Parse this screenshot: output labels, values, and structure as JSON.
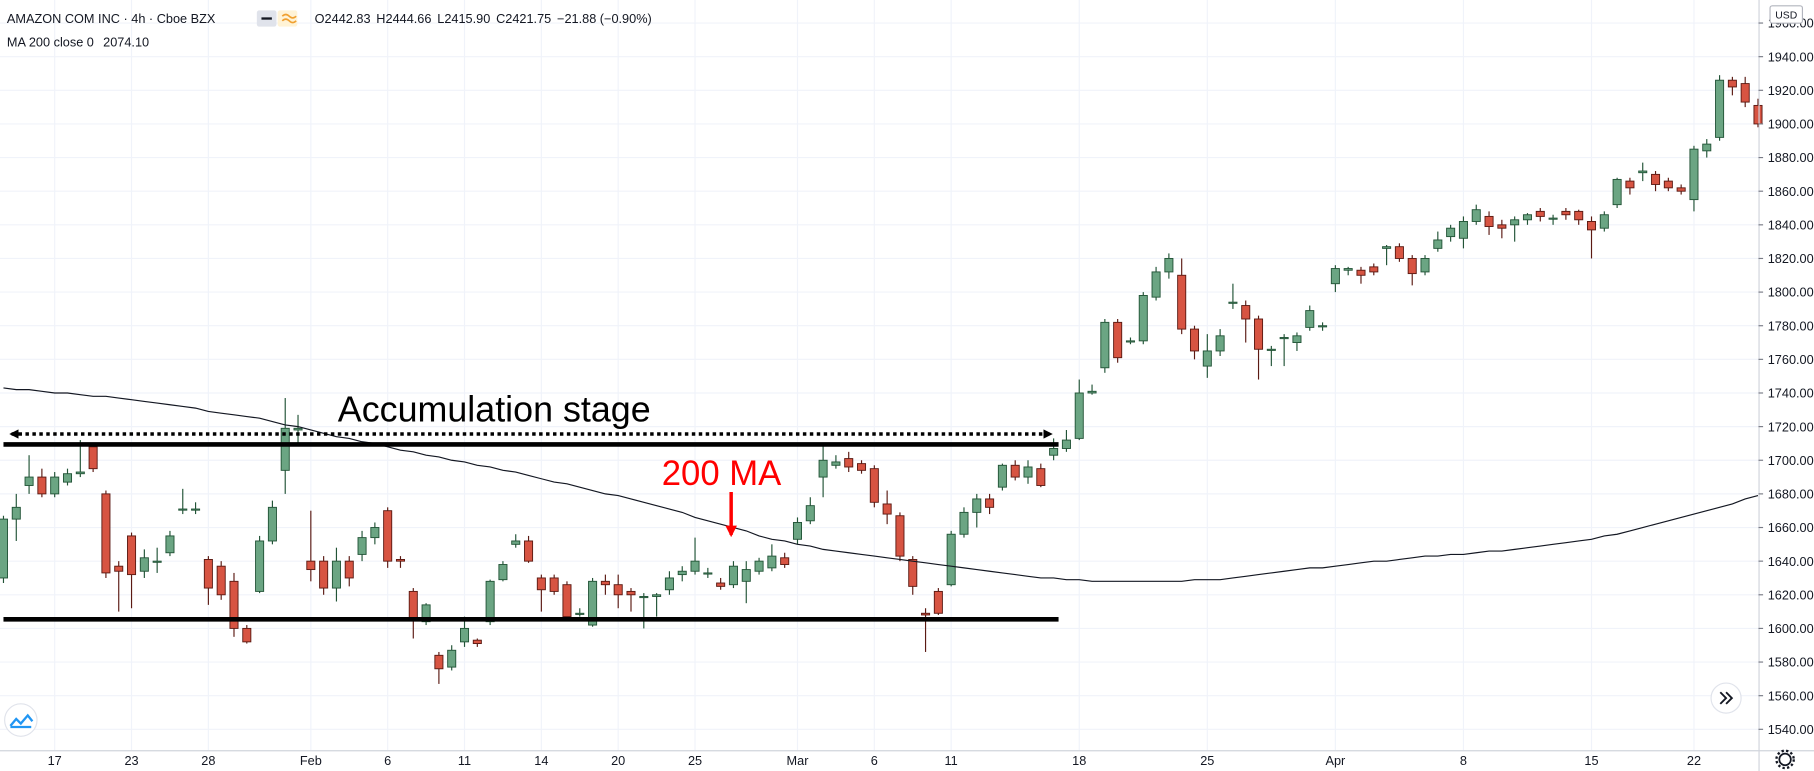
{
  "chart_data": {
    "type": "candlestick",
    "symbol": "AMAZON COM INC · 4h · Cboe BZX",
    "ohlc_legend": [
      "O2442.83",
      "H2444.66",
      "L2415.90",
      "C2421.75",
      "−21.88 (−0.90%)"
    ],
    "ma_legend": [
      "MA 200 close 0",
      "2074.10"
    ],
    "currency": "USD",
    "annotation": "Accumulation stage",
    "ma_annotation": "200 MA",
    "hlines": [
      1709.4,
      1605.4
    ],
    "arrow_level": 1715.6,
    "up_color": "#6ba583",
    "down_color": "#d75442",
    "ma_color": "#131722",
    "grid": true,
    "ylim": [
      1527.6,
      1973.7
    ],
    "yticks": [
      {
        "value": 1540,
        "label": "1540.00"
      },
      {
        "value": 1560,
        "label": "1560.00"
      },
      {
        "value": 1580,
        "label": "1580.00"
      },
      {
        "value": 1600,
        "label": "1600.00"
      },
      {
        "value": 1620,
        "label": "1620.00"
      },
      {
        "value": 1640,
        "label": "1640.00"
      },
      {
        "value": 1660,
        "label": "1660.00"
      },
      {
        "value": 1680,
        "label": "1680.00"
      },
      {
        "value": 1700,
        "label": "1700.00"
      },
      {
        "value": 1720,
        "label": "1720.00"
      },
      {
        "value": 1740,
        "label": "1740.00"
      },
      {
        "value": 1760,
        "label": "1760.00"
      },
      {
        "value": 1780,
        "label": "1780.00"
      },
      {
        "value": 1800,
        "label": "1800.00"
      },
      {
        "value": 1820,
        "label": "1820.00"
      },
      {
        "value": 1840,
        "label": "1840.00"
      },
      {
        "value": 1860,
        "label": "1860.00"
      },
      {
        "value": 1880,
        "label": "1880.00"
      },
      {
        "value": 1900,
        "label": "1900.00"
      },
      {
        "value": 1920,
        "label": "1920.00"
      },
      {
        "value": 1940,
        "label": "1940.00"
      },
      {
        "value": 1960,
        "label": "1960.00"
      }
    ],
    "categories": [
      null,
      null,
      null,
      null,
      "17",
      null,
      null,
      null,
      null,
      null,
      "23",
      null,
      null,
      null,
      null,
      null,
      "28",
      null,
      null,
      null,
      null,
      null,
      null,
      null,
      "Feb",
      null,
      null,
      null,
      null,
      null,
      "6",
      null,
      null,
      null,
      null,
      null,
      "11",
      null,
      null,
      null,
      null,
      null,
      "14",
      null,
      null,
      null,
      null,
      null,
      "20",
      null,
      null,
      null,
      null,
      null,
      "25",
      null,
      null,
      null,
      null,
      null,
      null,
      null,
      "Mar",
      null,
      null,
      null,
      null,
      null,
      "6",
      null,
      null,
      null,
      null,
      null,
      "11",
      null,
      null,
      null,
      null,
      null,
      null,
      null,
      null,
      null,
      "18",
      null,
      null,
      null,
      null,
      null,
      null,
      null,
      null,
      null,
      "25",
      null,
      null,
      null,
      null,
      null,
      null,
      null,
      null,
      null,
      "Apr",
      null,
      null,
      null,
      null,
      null,
      null,
      null,
      null,
      null,
      "8",
      null,
      null,
      null,
      null,
      null,
      null,
      null,
      null,
      null,
      "15",
      null,
      null,
      null,
      null,
      null,
      null,
      null,
      "22",
      null,
      null,
      null,
      null,
      null
    ],
    "open": [
      1630,
      1665,
      1685,
      1690,
      1680,
      1687,
      1692,
      1708,
      1680,
      1637,
      1655,
      1634,
      1640,
      1645,
      1671,
      1671,
      1641,
      1637,
      1628,
      1600,
      1622,
      1652,
      1694,
      1718,
      1640,
      1640,
      1624,
      1640,
      1644,
      1654,
      1670,
      1641,
      1622,
      1604,
      1584,
      1577,
      1592,
      1593,
      1604,
      1629,
      1650,
      1652,
      1630,
      1630,
      1626,
      1609,
      1602,
      1628,
      1626,
      1622,
      1619,
      1619,
      1623,
      1632,
      1634,
      1633,
      1627,
      1626,
      1628,
      1634,
      1636,
      1642,
      1653,
      1664,
      1690,
      1697,
      1701,
      1698,
      1695,
      1674,
      1667,
      1641,
      1609,
      1622,
      1626,
      1656,
      1669,
      1677,
      1684,
      1697,
      1690,
      1695,
      1703,
      1707,
      1713,
      1740,
      1755,
      1782,
      1771,
      1771,
      1797,
      1812,
      1810,
      1778,
      1756,
      1765,
      1794,
      1792,
      1784,
      1766,
      1773,
      1770,
      1779,
      1780,
      1805,
      1813,
      1813,
      1815,
      1826,
      1827,
      1820,
      1812,
      1826,
      1833,
      1832,
      1842,
      1845,
      1840,
      1840,
      1843,
      1848,
      1844,
      1848,
      1848,
      1842,
      1838,
      1852,
      1866,
      1871,
      1870,
      1866,
      1862,
      1855,
      1884,
      1892,
      1926,
      1924,
      1911
    ],
    "high": [
      1667,
      1680,
      1703,
      1695,
      1693,
      1695,
      1712,
      1710,
      1682,
      1640,
      1657,
      1647,
      1648,
      1658,
      1683,
      1675,
      1643,
      1640,
      1633,
      1602,
      1655,
      1676,
      1737,
      1727,
      1670,
      1643,
      1648,
      1643,
      1658,
      1663,
      1672,
      1643,
      1624,
      1615,
      1586,
      1590,
      1607,
      1594,
      1629,
      1640,
      1656,
      1655,
      1632,
      1632,
      1628,
      1612,
      1630,
      1632,
      1632,
      1624,
      1621,
      1621,
      1634,
      1637,
      1654,
      1636,
      1630,
      1640,
      1640,
      1642,
      1650,
      1645,
      1666,
      1678,
      1710,
      1703,
      1705,
      1700,
      1697,
      1682,
      1669,
      1643,
      1612,
      1624,
      1658,
      1672,
      1680,
      1680,
      1698,
      1700,
      1700,
      1698,
      1713,
      1718,
      1748,
      1745,
      1784,
      1784,
      1773,
      1800,
      1815,
      1823,
      1820,
      1780,
      1775,
      1778,
      1805,
      1795,
      1786,
      1768,
      1775,
      1776,
      1792,
      1782,
      1816,
      1815,
      1815,
      1817,
      1828,
      1829,
      1822,
      1822,
      1836,
      1840,
      1845,
      1852,
      1848,
      1843,
      1845,
      1847,
      1850,
      1846,
      1850,
      1849,
      1845,
      1848,
      1868,
      1868,
      1877,
      1872,
      1868,
      1864,
      1887,
      1891,
      1929,
      1928,
      1928,
      1915
    ],
    "low": [
      1627,
      1652,
      1680,
      1678,
      1678,
      1685,
      1690,
      1693,
      1630,
      1610,
      1612,
      1630,
      1633,
      1643,
      1668,
      1668,
      1614,
      1617,
      1595,
      1591,
      1621,
      1650,
      1680,
      1710,
      1628,
      1620,
      1616,
      1625,
      1640,
      1650,
      1636,
      1636,
      1594,
      1602,
      1567,
      1575,
      1589,
      1589,
      1602,
      1628,
      1648,
      1639,
      1610,
      1620,
      1606,
      1607,
      1601,
      1620,
      1612,
      1610,
      1600,
      1607,
      1620,
      1628,
      1632,
      1630,
      1623,
      1624,
      1615,
      1632,
      1634,
      1636,
      1650,
      1662,
      1678,
      1695,
      1693,
      1692,
      1672,
      1662,
      1640,
      1620,
      1586,
      1608,
      1625,
      1654,
      1660,
      1668,
      1682,
      1688,
      1686,
      1684,
      1700,
      1705,
      1712,
      1739,
      1752,
      1758,
      1769,
      1769,
      1795,
      1808,
      1775,
      1760,
      1749,
      1762,
      1790,
      1770,
      1748,
      1756,
      1756,
      1765,
      1777,
      1777,
      1800,
      1810,
      1805,
      1810,
      1816,
      1818,
      1804,
      1810,
      1824,
      1830,
      1826,
      1840,
      1834,
      1832,
      1830,
      1840,
      1842,
      1840,
      1843,
      1840,
      1820,
      1836,
      1850,
      1858,
      1866,
      1860,
      1860,
      1858,
      1848,
      1880,
      1890,
      1917,
      1910,
      1898
    ],
    "close": [
      1665,
      1672,
      1690,
      1680,
      1690,
      1692,
      1693,
      1695,
      1633,
      1634,
      1632,
      1642,
      1640,
      1655,
      1671,
      1671,
      1624,
      1620,
      1600,
      1592,
      1652,
      1672,
      1719,
      1719,
      1635,
      1624,
      1640,
      1630,
      1654,
      1660,
      1640,
      1640,
      1605,
      1614,
      1576,
      1587,
      1600,
      1591,
      1628,
      1638,
      1652,
      1640,
      1623,
      1622,
      1607,
      1609,
      1628,
      1626,
      1620,
      1620,
      1619,
      1620,
      1630,
      1634,
      1640,
      1633,
      1625,
      1637,
      1635,
      1640,
      1643,
      1638,
      1663,
      1673,
      1700,
      1699,
      1696,
      1694,
      1675,
      1668,
      1643,
      1625,
      1608,
      1609,
      1656,
      1669,
      1677,
      1672,
      1697,
      1690,
      1696,
      1685,
      1707,
      1712,
      1740,
      1741,
      1782,
      1761,
      1771,
      1798,
      1812,
      1820,
      1778,
      1765,
      1765,
      1774,
      1794,
      1784,
      1766,
      1766,
      1773,
      1774,
      1789,
      1780,
      1814,
      1814,
      1810,
      1812,
      1827,
      1820,
      1811,
      1820,
      1831,
      1838,
      1842,
      1849,
      1839,
      1838,
      1843,
      1846,
      1845,
      1844,
      1846,
      1843,
      1837,
      1846,
      1867,
      1862,
      1872,
      1864,
      1862,
      1860,
      1885,
      1888,
      1926,
      1922,
      1913,
      1900
    ],
    "ma": [
      1743,
      1742,
      1742,
      1741,
      1740,
      1740,
      1739,
      1738,
      1738,
      1737,
      1736,
      1735,
      1734,
      1733,
      1732,
      1731,
      1729,
      1728,
      1727,
      1726,
      1725,
      1723,
      1721,
      1720,
      1718,
      1716,
      1714,
      1713,
      1711,
      1710,
      1708,
      1706,
      1705,
      1703,
      1702,
      1700,
      1699,
      1697,
      1696,
      1694,
      1693,
      1691,
      1689,
      1687,
      1686,
      1684,
      1682,
      1680,
      1679,
      1677,
      1675,
      1673,
      1671,
      1669,
      1666,
      1664,
      1662,
      1660,
      1658,
      1655,
      1653,
      1652,
      1650,
      1649,
      1647,
      1646,
      1645,
      1644,
      1643,
      1642,
      1641,
      1640,
      1639,
      1638,
      1637,
      1636,
      1635,
      1634,
      1633,
      1632,
      1631,
      1630,
      1630,
      1629,
      1629,
      1628,
      1628,
      1628,
      1628,
      1628,
      1628,
      1628,
      1628,
      1629,
      1629,
      1629,
      1630,
      1631,
      1632,
      1633,
      1634,
      1635,
      1636,
      1636,
      1637,
      1638,
      1639,
      1640,
      1640,
      1641,
      1642,
      1643,
      1643,
      1644,
      1644,
      1645,
      1646,
      1646,
      1647,
      1648,
      1649,
      1650,
      1651,
      1652,
      1653,
      1655,
      1656,
      1658,
      1660,
      1662,
      1664,
      1666,
      1668,
      1670,
      1672,
      1674,
      1677,
      1679
    ]
  }
}
